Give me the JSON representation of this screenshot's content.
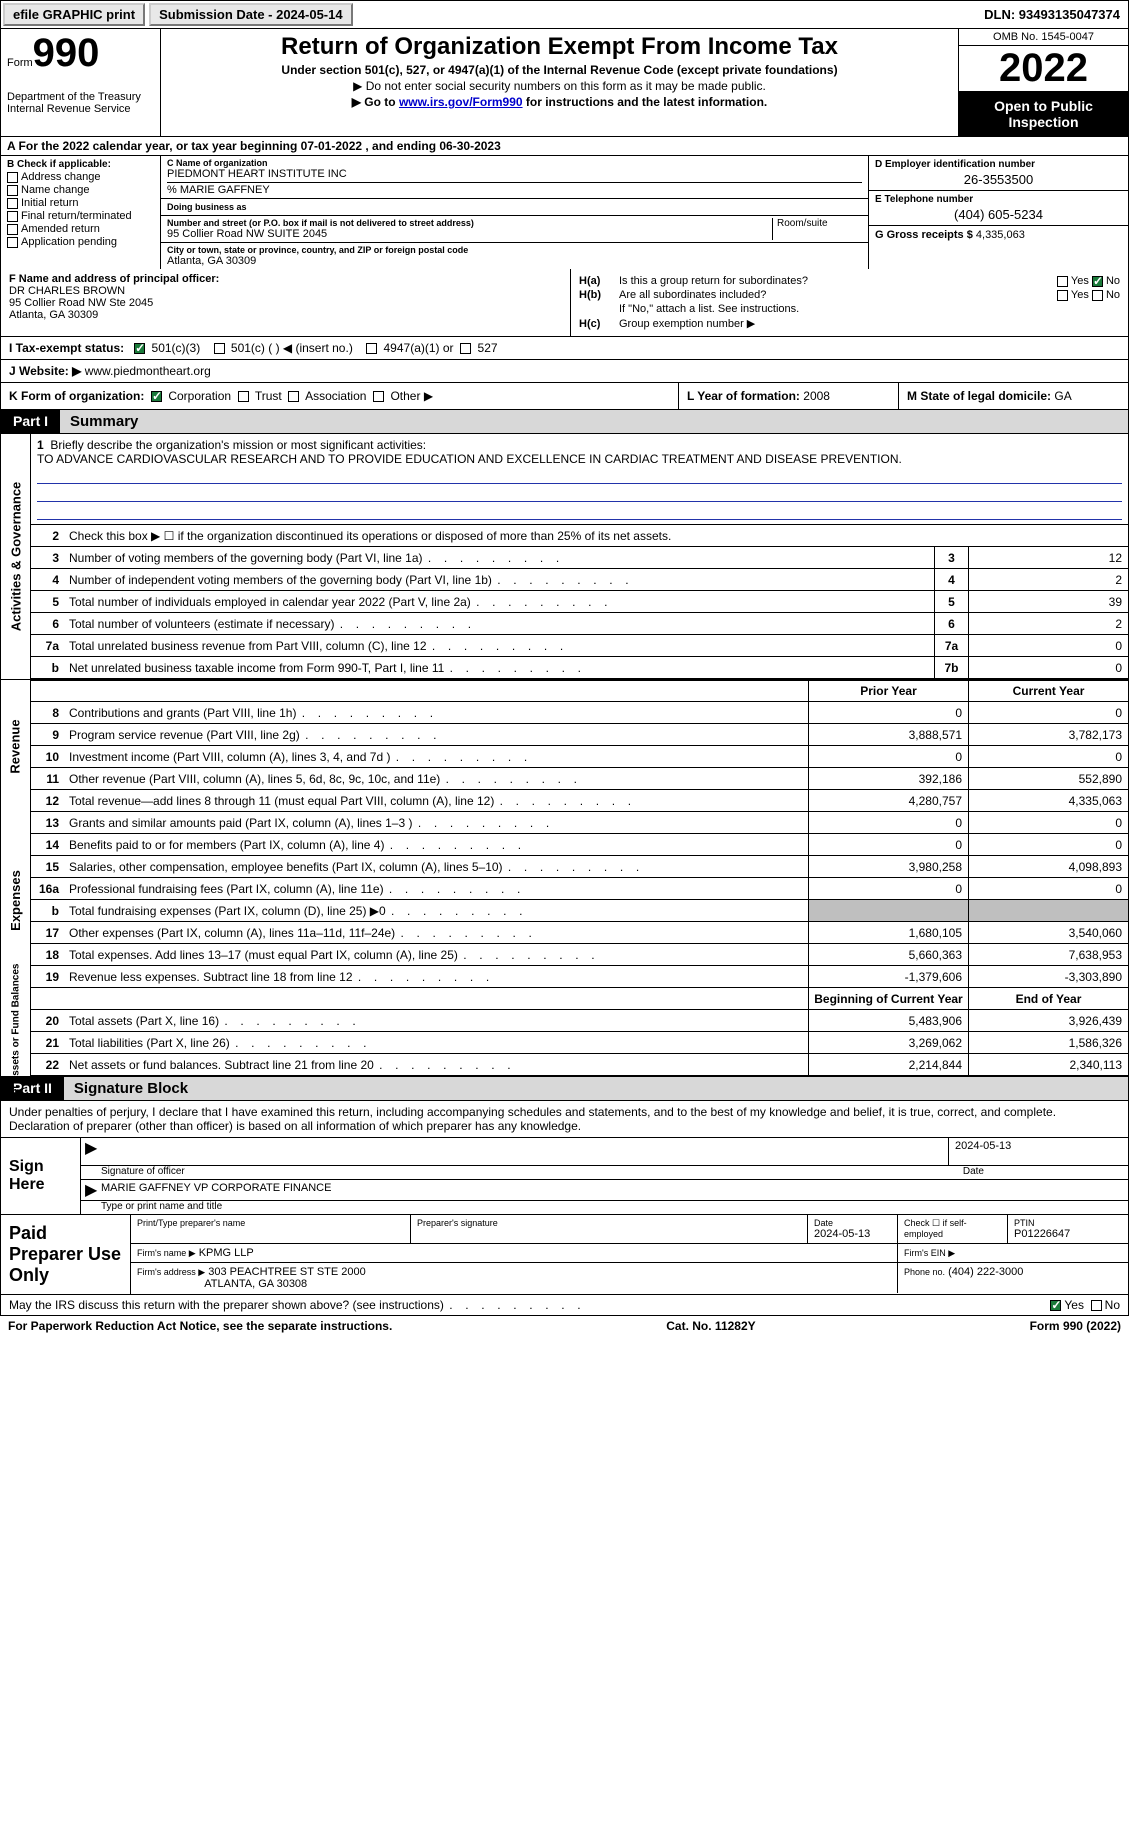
{
  "topbar": {
    "efile": "efile GRAPHIC print",
    "submission": "Submission Date - 2024-05-14",
    "dln": "DLN: 93493135047374"
  },
  "header": {
    "form_word": "Form",
    "form_num": "990",
    "title": "Return of Organization Exempt From Income Tax",
    "sub1": "Under section 501(c), 527, or 4947(a)(1) of the Internal Revenue Code (except private foundations)",
    "sub2": "▶ Do not enter social security numbers on this form as it may be made public.",
    "sub3_pre": "▶ Go to ",
    "sub3_link": "www.irs.gov/Form990",
    "sub3_post": " for instructions and the latest information.",
    "dept": "Department of the Treasury\nInternal Revenue Service",
    "omb": "OMB No. 1545-0047",
    "year": "2022",
    "open": "Open to Public Inspection"
  },
  "rowA": "A  For the 2022 calendar year, or tax year beginning 07-01-2022    , and ending 06-30-2023",
  "colB": {
    "label": "B Check if applicable:",
    "opts": [
      "Address change",
      "Name change",
      "Initial return",
      "Final return/terminated",
      "Amended return",
      "Application pending"
    ]
  },
  "colC": {
    "name_lbl": "C Name of organization",
    "name": "PIEDMONT HEART INSTITUTE INC",
    "careof": "% MARIE GAFFNEY",
    "dba_lbl": "Doing business as",
    "street_lbl": "Number and street (or P.O. box if mail is not delivered to street address)",
    "street": "95 Collier Road NW SUITE 2045",
    "room_lbl": "Room/suite",
    "city_lbl": "City or town, state or province, country, and ZIP or foreign postal code",
    "city": "Atlanta, GA   30309"
  },
  "colD": {
    "ein_lbl": "D Employer identification number",
    "ein": "26-3553500",
    "phone_lbl": "E Telephone number",
    "phone": "(404) 605-5234",
    "gross_lbl": "G Gross receipts $",
    "gross": "4,335,063"
  },
  "rowF": {
    "lbl": "F Name and address of principal officer:",
    "name": "DR CHARLES BROWN",
    "addr1": "95 Collier Road NW Ste 2045",
    "addr2": "Atlanta, GA   30309"
  },
  "rowH": {
    "ha_lbl": "H(a)",
    "ha_txt": "Is this a group return for subordinates?",
    "hb_lbl": "H(b)",
    "hb_txt": "Are all subordinates included?",
    "hb_note": "If \"No,\" attach a list. See instructions.",
    "hc_lbl": "H(c)",
    "hc_txt": "Group exemption number ▶",
    "yes": "Yes",
    "no": "No"
  },
  "rowI": {
    "lbl": "I    Tax-exempt status:",
    "opts": [
      "501(c)(3)",
      "501(c) (   ) ◀ (insert no.)",
      "4947(a)(1) or",
      "527"
    ]
  },
  "rowJ": {
    "lbl": "J   Website: ▶",
    "val": "  www.piedmontheart.org"
  },
  "rowK": {
    "lbl": "K Form of organization:",
    "opts": [
      "Corporation",
      "Trust",
      "Association",
      "Other ▶"
    ]
  },
  "rowL": {
    "lbl": "L Year of formation:",
    "val": "2008"
  },
  "rowM": {
    "lbl": "M State of legal domicile:",
    "val": "GA"
  },
  "parts": {
    "p1": "Part I",
    "p1t": "Summary",
    "p2": "Part II",
    "p2t": "Signature Block"
  },
  "mission": {
    "num": "1",
    "lbl": "Briefly describe the organization's mission or most significant activities:",
    "txt": "TO ADVANCE CARDIOVASCULAR RESEARCH AND TO PROVIDE EDUCATION AND EXCELLENCE IN CARDIAC TREATMENT AND DISEASE PREVENTION."
  },
  "summary": {
    "l2": "Check this box ▶ ☐  if the organization discontinued its operations or disposed of more than 25% of its net assets.",
    "lines_one_col": [
      {
        "n": "3",
        "d": "Number of voting members of the governing body (Part VI, line 1a)",
        "box": "3",
        "v": "12"
      },
      {
        "n": "4",
        "d": "Number of independent voting members of the governing body (Part VI, line 1b)",
        "box": "4",
        "v": "2"
      },
      {
        "n": "5",
        "d": "Total number of individuals employed in calendar year 2022 (Part V, line 2a)",
        "box": "5",
        "v": "39"
      },
      {
        "n": "6",
        "d": "Total number of volunteers (estimate if necessary)",
        "box": "6",
        "v": "2"
      },
      {
        "n": "7a",
        "d": "Total unrelated business revenue from Part VIII, column (C), line 12",
        "box": "7a",
        "v": "0"
      },
      {
        "n": "b",
        "d": "Net unrelated business taxable income from Form 990-T, Part I, line 11",
        "box": "7b",
        "v": "0"
      }
    ],
    "col_hdr1": "Prior Year",
    "col_hdr2": "Current Year",
    "revenue": [
      {
        "n": "8",
        "d": "Contributions and grants (Part VIII, line 1h)",
        "v1": "0",
        "v2": "0"
      },
      {
        "n": "9",
        "d": "Program service revenue (Part VIII, line 2g)",
        "v1": "3,888,571",
        "v2": "3,782,173"
      },
      {
        "n": "10",
        "d": "Investment income (Part VIII, column (A), lines 3, 4, and 7d )",
        "v1": "0",
        "v2": "0"
      },
      {
        "n": "11",
        "d": "Other revenue (Part VIII, column (A), lines 5, 6d, 8c, 9c, 10c, and 11e)",
        "v1": "392,186",
        "v2": "552,890"
      },
      {
        "n": "12",
        "d": "Total revenue—add lines 8 through 11 (must equal Part VIII, column (A), line 12)",
        "v1": "4,280,757",
        "v2": "4,335,063"
      }
    ],
    "expenses": [
      {
        "n": "13",
        "d": "Grants and similar amounts paid (Part IX, column (A), lines 1–3 )",
        "v1": "0",
        "v2": "0"
      },
      {
        "n": "14",
        "d": "Benefits paid to or for members (Part IX, column (A), line 4)",
        "v1": "0",
        "v2": "0"
      },
      {
        "n": "15",
        "d": "Salaries, other compensation, employee benefits (Part IX, column (A), lines 5–10)",
        "v1": "3,980,258",
        "v2": "4,098,893"
      },
      {
        "n": "16a",
        "d": "Professional fundraising fees (Part IX, column (A), line 11e)",
        "v1": "0",
        "v2": "0"
      },
      {
        "n": "b",
        "d": "Total fundraising expenses (Part IX, column (D), line 25) ▶0",
        "v1": "",
        "v2": "",
        "shade": true
      },
      {
        "n": "17",
        "d": "Other expenses (Part IX, column (A), lines 11a–11d, 11f–24e)",
        "v1": "1,680,105",
        "v2": "3,540,060"
      },
      {
        "n": "18",
        "d": "Total expenses. Add lines 13–17 (must equal Part IX, column (A), line 25)",
        "v1": "5,660,363",
        "v2": "7,638,953"
      },
      {
        "n": "19",
        "d": "Revenue less expenses. Subtract line 18 from line 12",
        "v1": "-1,379,606",
        "v2": "-3,303,890"
      }
    ],
    "na_hdr1": "Beginning of Current Year",
    "na_hdr2": "End of Year",
    "netassets": [
      {
        "n": "20",
        "d": "Total assets (Part X, line 16)",
        "v1": "5,483,906",
        "v2": "3,926,439"
      },
      {
        "n": "21",
        "d": "Total liabilities (Part X, line 26)",
        "v1": "3,269,062",
        "v2": "1,586,326"
      },
      {
        "n": "22",
        "d": "Net assets or fund balances. Subtract line 21 from line 20",
        "v1": "2,214,844",
        "v2": "2,340,113"
      }
    ]
  },
  "side": {
    "ag": "Activities & Governance",
    "rev": "Revenue",
    "exp": "Expenses",
    "na": "Net Assets or Fund Balances"
  },
  "sig": {
    "decl": "Under penalties of perjury, I declare that I have examined this return, including accompanying schedules and statements, and to the best of my knowledge and belief, it is true, correct, and complete. Declaration of preparer (other than officer) is based on all information of which preparer has any knowledge.",
    "sign_here": "Sign Here",
    "sig_of_officer": "Signature of officer",
    "sig_date": "2024-05-13",
    "officer_name": "MARIE GAFFNEY VP CORPORATE FINANCE",
    "type_name": "Type or print name and title"
  },
  "prep": {
    "lbl": "Paid Preparer Use Only",
    "h1": "Print/Type preparer's name",
    "h2": "Preparer's signature",
    "h3": "Date",
    "h3v": "2024-05-13",
    "h4": "Check ☐ if self-employed",
    "h5": "PTIN",
    "h5v": "P01226647",
    "firm_name_lbl": "Firm's name      ▶",
    "firm_name": "KPMG LLP",
    "firm_ein_lbl": "Firm's EIN ▶",
    "firm_addr_lbl": "Firm's address ▶",
    "firm_addr1": "303 PEACHTREE ST STE 2000",
    "firm_addr2": "ATLANTA, GA   30308",
    "phone_lbl": "Phone no.",
    "phone": "(404) 222-3000"
  },
  "footer": {
    "q": "May the IRS discuss this return with the preparer shown above? (see instructions)",
    "yes": "Yes",
    "no": "No",
    "pra": "For Paperwork Reduction Act Notice, see the separate instructions.",
    "cat": "Cat. No. 11282Y",
    "form": "Form 990 (2022)"
  }
}
